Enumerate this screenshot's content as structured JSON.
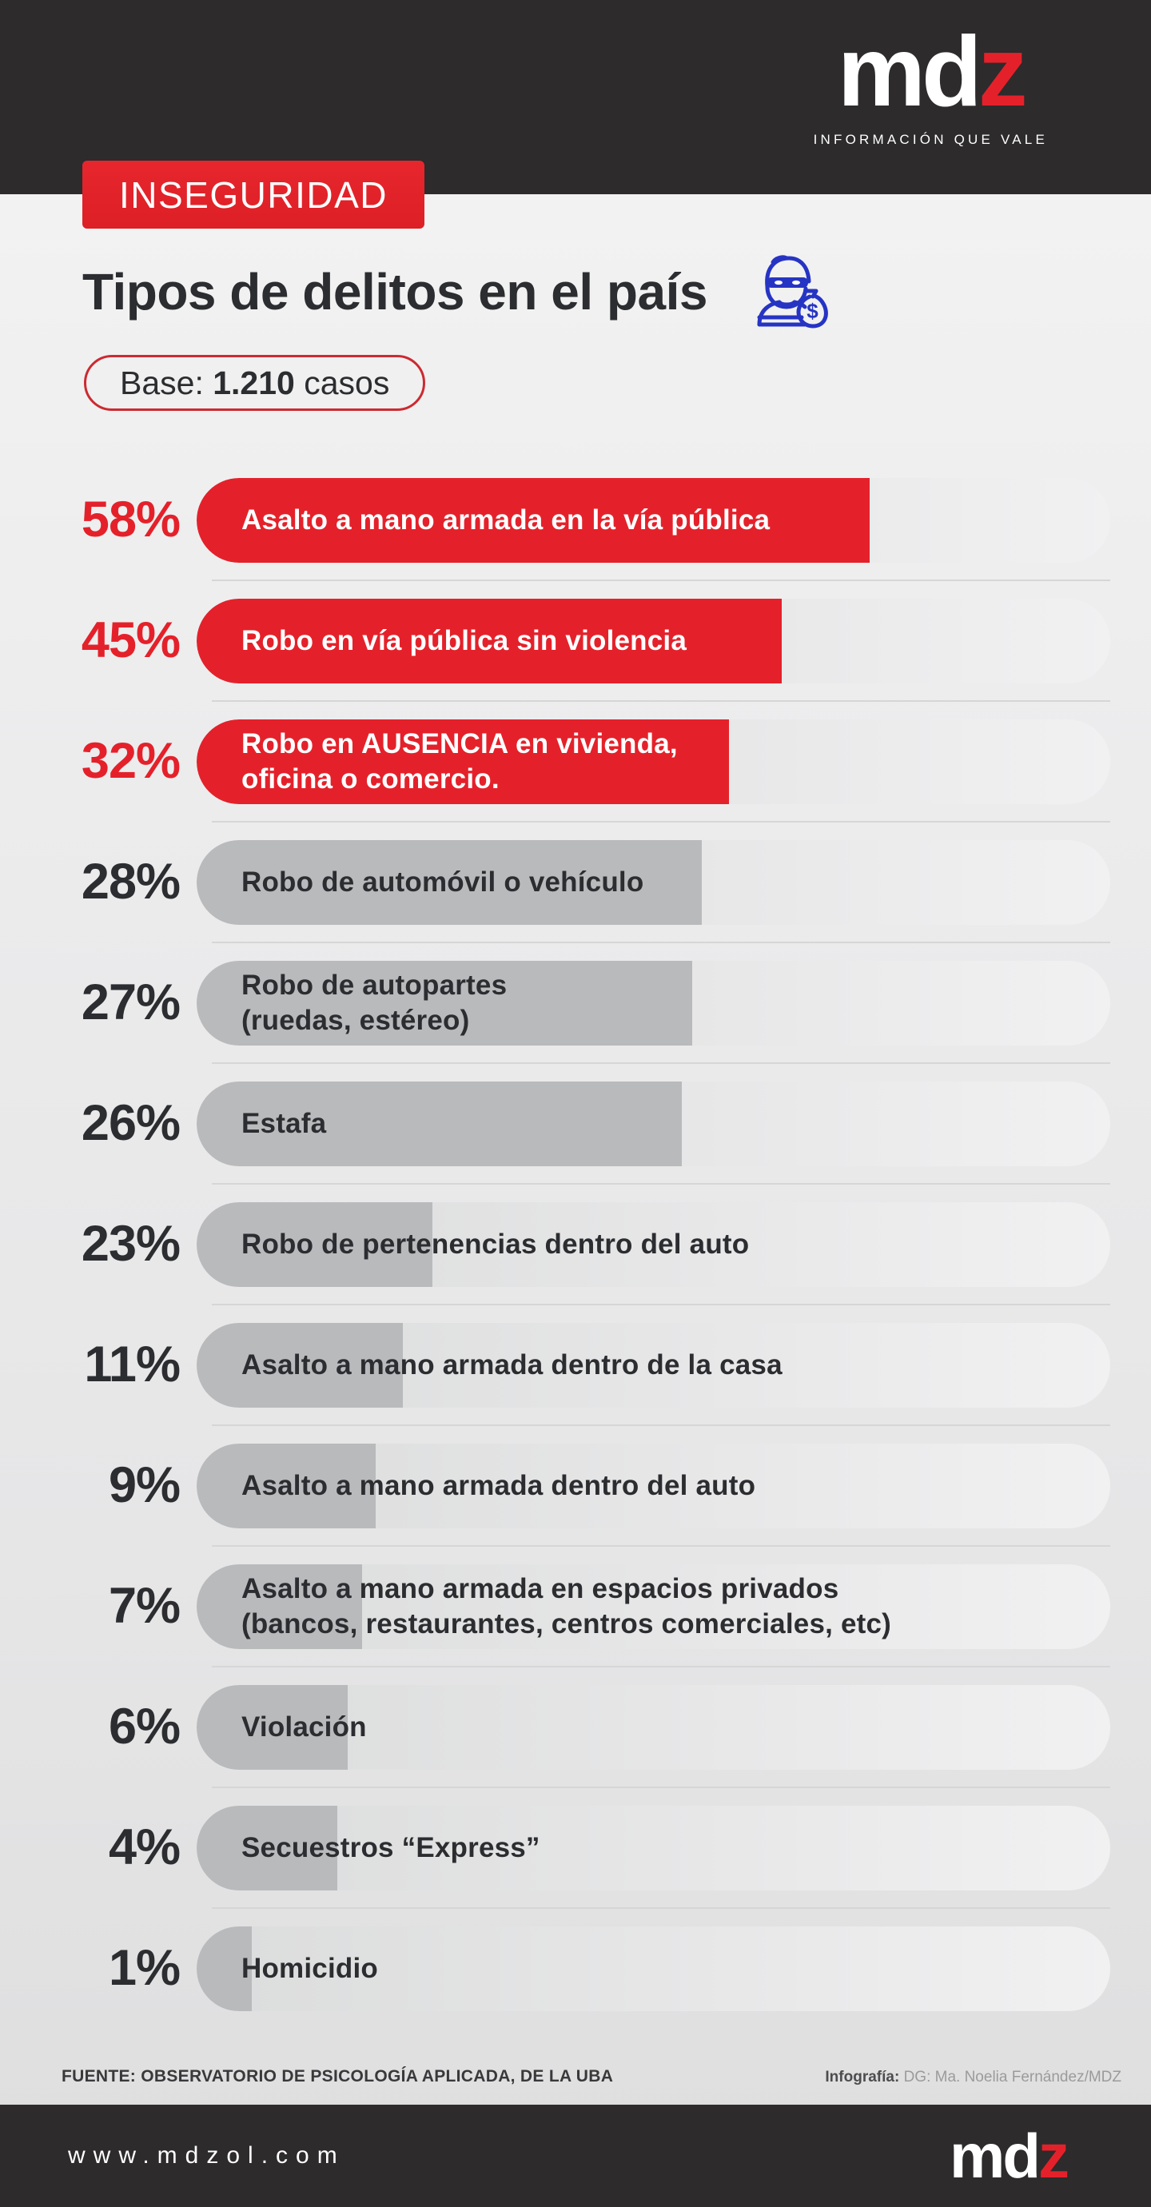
{
  "header": {
    "brand_md": "md",
    "brand_z": "z",
    "tagline": "INFORMACIÓN QUE VALE",
    "badge": "INSEGURIDAD"
  },
  "title": "Tipos de delitos en el país",
  "icons": {
    "title_icon": "burglar-with-money-bag"
  },
  "base": {
    "label": "Base: ",
    "value": "1.210",
    "suffix": " casos"
  },
  "chart_data": {
    "type": "bar",
    "orientation": "horizontal",
    "title": "Tipos de delitos en el país",
    "base": "Base: 1.210 casos",
    "unit": "%",
    "xlim": [
      0,
      100
    ],
    "grid": false,
    "legend": false,
    "categories": [
      "Asalto a mano armada en la vía pública",
      "Robo en vía pública sin violencia",
      "Robo en AUSENCIA en vivienda,\noficina o comercio.",
      "Robo de automóvil o vehículo",
      "Robo de autopartes\n(ruedas, estéreo)",
      "Estafa",
      "Robo de pertenencias dentro del auto",
      "Asalto a mano armada dentro de la casa",
      "Asalto a mano armada dentro del auto",
      "Asalto a mano armada en espacios privados\n(bancos, restaurantes, centros comerciales, etc)",
      "Violación",
      "Secuestros “Express”",
      "Homicidio"
    ],
    "values": [
      58,
      45,
      32,
      28,
      27,
      26,
      23,
      11,
      9,
      7,
      6,
      4,
      1
    ],
    "bar_colors": [
      "red",
      "red",
      "red",
      "gray",
      "gray",
      "gray",
      "gray",
      "gray",
      "gray",
      "gray",
      "gray",
      "gray",
      "gray"
    ],
    "bar_visual_width_pct": [
      73.7,
      64.0,
      58.3,
      55.3,
      54.2,
      53.1,
      25.8,
      22.6,
      19.6,
      18.1,
      16.5,
      15.4,
      6.0
    ]
  },
  "footer": {
    "source": "FUENTE: OBSERVATORIO DE PSICOLOGÍA APLICADA, DE LA UBA",
    "credit_label": "Infografía:",
    "credit_value": " DG: Ma. Noelia Fernández/MDZ",
    "url": "www.mdzol.com"
  },
  "colors": {
    "accent_red": "#e4212a",
    "bar_gray": "#b9babc",
    "icon_blue": "#2634c4",
    "dark_bg": "#2d2b2c",
    "text_dark": "#2b2d30",
    "separator": "#d6d6d7",
    "pill_border": "#cc2a31",
    "muted_text": "#9b9b9c"
  }
}
